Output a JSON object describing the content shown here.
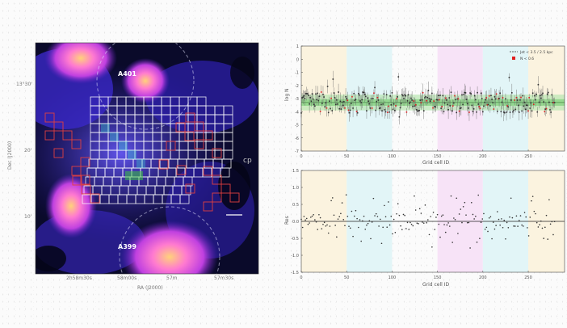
{
  "map": {
    "labels": {
      "north_cluster": "A401",
      "south_cluster": "A399"
    },
    "xaxis_label": "RA (J2000)",
    "yaxis_label": "Dec (J2000)",
    "xticks": [
      "2h58m30s",
      "58m00s",
      "57m",
      "57m30s"
    ],
    "yticks": [
      "13°30'",
      "20'",
      "10'"
    ]
  },
  "watermark": "cp",
  "chart_data": [
    {
      "type": "scatter",
      "title": "",
      "xlabel": "Grid cell ID",
      "ylabel": "log N",
      "xticks": [
        "0",
        "50",
        "100",
        "150",
        "200",
        "250"
      ],
      "yticks": [
        "1",
        "0",
        "-1",
        "-2",
        "-3",
        "-4",
        "-5",
        "-6",
        "-7"
      ],
      "legend": [
        "Jet < 3.5 / 2.5 kpc",
        "N < 0.6"
      ],
      "legend_position": "top-right",
      "xlim": [
        0,
        290
      ],
      "ylim": [
        -7,
        1
      ],
      "band": {
        "center": -3.3,
        "inner_halfwidth": 0.25,
        "outer_halfwidth": 0.6
      },
      "shaded_regions": [
        [
          0,
          50,
          "#fbf3df"
        ],
        [
          50,
          100,
          "#e2f5f7"
        ],
        [
          150,
          200,
          "#f7e3f7"
        ],
        [
          200,
          250,
          "#e2f5f7"
        ],
        [
          250,
          290,
          "#fbf3df"
        ]
      ]
    },
    {
      "type": "scatter",
      "title": "",
      "xlabel": "Grid cell ID",
      "ylabel": "Res",
      "xticks": [
        "0",
        "50",
        "100",
        "150",
        "200",
        "250"
      ],
      "yticks": [
        "1.5",
        "1.0",
        "0.5",
        "0.0",
        "-0.5",
        "-1.0",
        "-1.5"
      ],
      "xlim": [
        0,
        290
      ],
      "ylim": [
        -1.5,
        1.5
      ],
      "shaded_regions": [
        [
          0,
          50,
          "#fbf3df"
        ],
        [
          50,
          100,
          "#e2f5f7"
        ],
        [
          150,
          200,
          "#f7e3f7"
        ],
        [
          200,
          250,
          "#e2f5f7"
        ],
        [
          250,
          290,
          "#fbf3df"
        ]
      ]
    }
  ]
}
